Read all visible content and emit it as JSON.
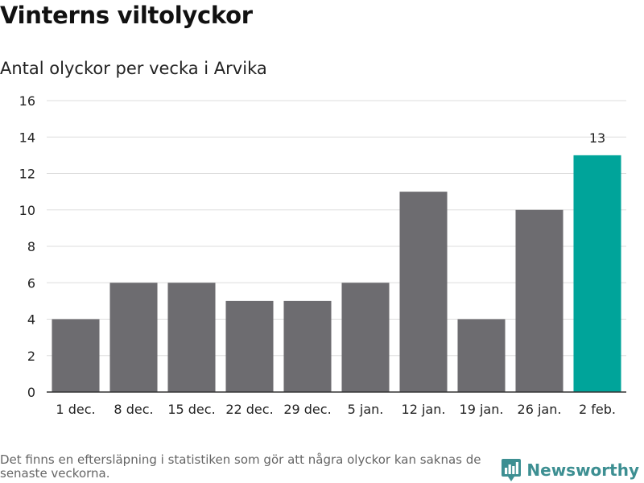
{
  "chart_data": {
    "type": "bar",
    "title": "Vinterns viltolyckor",
    "subtitle": "Antal olyckor per vecka i Arvika",
    "categories": [
      "1 dec.",
      "8 dec.",
      "15 dec.",
      "22 dec.",
      "29 dec.",
      "5 jan.",
      "12 jan.",
      "19 jan.",
      "26 jan.",
      "2 feb."
    ],
    "values": [
      4,
      6,
      6,
      5,
      5,
      6,
      11,
      4,
      10,
      13
    ],
    "highlight_index": 9,
    "data_labels": [
      {
        "index": 9,
        "text": "13"
      }
    ],
    "ylim": [
      0,
      16
    ],
    "yticks": [
      "0",
      "2",
      "4",
      "6",
      "8",
      "10",
      "12",
      "14",
      "16"
    ],
    "xlabel": "",
    "ylabel": "",
    "grid": true,
    "legend": "none",
    "colors": {
      "bar": "#6d6c70",
      "highlight": "#00a49a",
      "grid": "#dddddd",
      "axis": "#333333"
    }
  },
  "footnote": "Det finns en eftersläpning i statistiken som gör att några olyckor kan saknas de senaste veckorna.",
  "brand": {
    "name": "Newsworthy",
    "icon": "bar-chart-logo-icon",
    "color": "#3d8f92"
  }
}
